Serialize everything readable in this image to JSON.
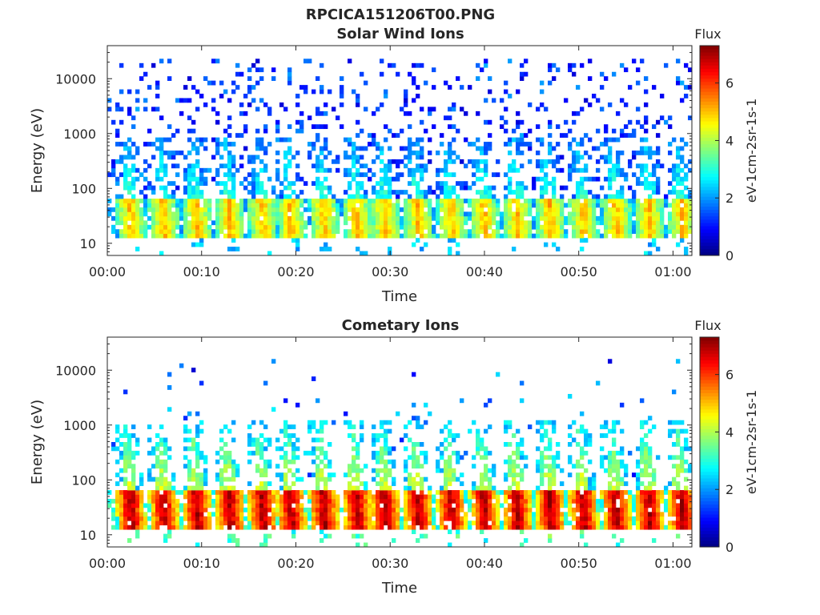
{
  "figure": {
    "title": "RPCICA151206T00.PNG"
  },
  "chart_data": [
    {
      "type": "heatmap",
      "title": "Solar Wind Ions",
      "xlabel": "Time",
      "ylabel": "Energy (eV)",
      "x_ticks": [
        "00:00",
        "00:10",
        "00:20",
        "00:30",
        "00:40",
        "00:50",
        "01:00"
      ],
      "x_tick_minutes": [
        0,
        10,
        20,
        30,
        40,
        50,
        60
      ],
      "xlim_minutes": [
        0,
        62
      ],
      "y_scale": "log",
      "y_ticks": [
        "10",
        "100",
        "1000",
        "10000"
      ],
      "y_tick_values": [
        10,
        100,
        1000,
        10000
      ],
      "ylim": [
        6,
        40000
      ],
      "colorbar": {
        "title": "Flux",
        "label": "eV-1cm-2sr-1s-1",
        "ticks": [
          "0",
          "2",
          "4",
          "6"
        ],
        "tick_values": [
          0,
          2,
          4,
          6
        ],
        "range": [
          0,
          7.3
        ],
        "colormap": "jet"
      },
      "sweep_count": 18,
      "sweep_times_minutes": [
        2.5,
        6.0,
        9.5,
        13.0,
        16.5,
        19.5,
        23.0,
        26.5,
        29.5,
        33.0,
        36.5,
        40.0,
        43.5,
        47.0,
        50.5,
        54.0,
        57.5,
        61.0
      ],
      "flux_scale": 0.72,
      "peak_energy_ev": 30,
      "sweep_top_energy_ev": 700,
      "background_max_energy_ev": 25000,
      "background_density": 0.25
    },
    {
      "type": "heatmap",
      "title": "Cometary Ions",
      "xlabel": "Time",
      "ylabel": "Energy (eV)",
      "x_ticks": [
        "00:00",
        "00:10",
        "00:20",
        "00:30",
        "00:40",
        "00:50",
        "01:00"
      ],
      "x_tick_minutes": [
        0,
        10,
        20,
        30,
        40,
        50,
        60
      ],
      "xlim_minutes": [
        0,
        62
      ],
      "y_scale": "log",
      "y_ticks": [
        "10",
        "100",
        "1000",
        "10000"
      ],
      "y_tick_values": [
        10,
        100,
        1000,
        10000
      ],
      "ylim": [
        6,
        40000
      ],
      "colorbar": {
        "title": "Flux",
        "label": "eV-1cm-2sr-1s-1",
        "ticks": [
          "0",
          "2",
          "4",
          "6"
        ],
        "tick_values": [
          0,
          2,
          4,
          6
        ],
        "range": [
          0,
          7.3
        ],
        "colormap": "jet"
      },
      "sweep_count": 18,
      "sweep_times_minutes": [
        2.5,
        6.0,
        9.5,
        13.0,
        16.5,
        19.5,
        23.0,
        26.5,
        29.5,
        33.0,
        36.5,
        40.0,
        43.5,
        47.0,
        50.5,
        54.0,
        57.5,
        61.0
      ],
      "flux_scale": 1.0,
      "peak_energy_ev": 30,
      "sweep_top_energy_ev": 1000,
      "background_max_energy_ev": 15000,
      "background_density": 0.03
    }
  ]
}
